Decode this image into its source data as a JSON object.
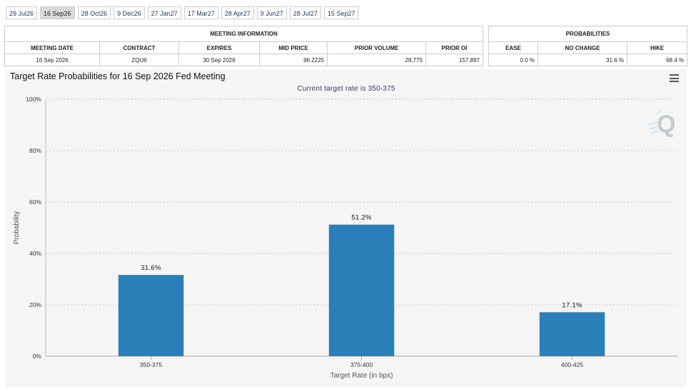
{
  "tabs": [
    "29 Jul26",
    "16 Sep26",
    "28 Oct26",
    "9 Dec26",
    "27 Jan27",
    "17 Mar27",
    "28 Apr27",
    "9 Jun27",
    "28 Jul27",
    "15 Sep27"
  ],
  "active_tab": 1,
  "meeting_info": {
    "title": "MEETING INFORMATION",
    "headers": [
      "MEETING DATE",
      "CONTRACT",
      "EXPIRES",
      "MID PRICE",
      "PRIOR VOLUME",
      "PRIOR OI"
    ],
    "values": [
      "16 Sep 2026",
      "ZQU6",
      "30 Sep 2026",
      "96.2225",
      "28,775",
      "157,897"
    ]
  },
  "probabilities": {
    "title": "PROBABILITIES",
    "headers": [
      "EASE",
      "NO CHANGE",
      "HIKE"
    ],
    "values": [
      "0.0 %",
      "31.6 %",
      "68.4 %"
    ]
  },
  "chart_data": {
    "type": "bar",
    "title": "Target Rate Probabilities for 16 Sep 2026 Fed Meeting",
    "subtitle": "Current target rate is 350-375",
    "categories": [
      "350-375",
      "375-400",
      "400-425"
    ],
    "values": [
      31.6,
      51.2,
      17.1
    ],
    "data_labels": [
      "31.6%",
      "51.2%",
      "17.1%"
    ],
    "xlabel": "Target Rate (in bps)",
    "ylabel": "Probability",
    "ylim": [
      0,
      100
    ],
    "yticks": [
      "0%",
      "20%",
      "40%",
      "60%",
      "80%",
      "100%"
    ],
    "grid": true,
    "bar_color": "#2a7fb8"
  }
}
